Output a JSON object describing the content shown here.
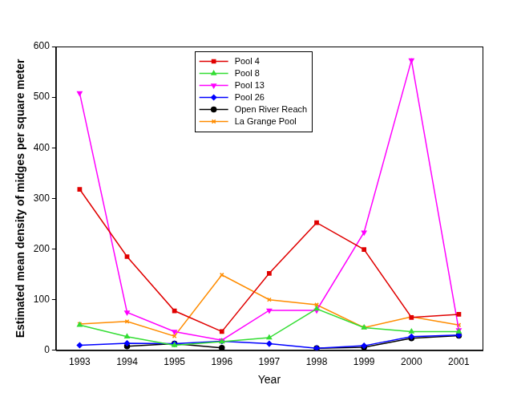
{
  "chart_data": {
    "type": "line",
    "x_label": "Year",
    "y_label": "Estimated mean density of midges per square meter",
    "categories": [
      "1993",
      "1994",
      "1995",
      "1996",
      "1997",
      "1998",
      "1999",
      "2000",
      "2001"
    ],
    "series": [
      {
        "name": "Pool 4",
        "color": "#e00000",
        "marker": "square",
        "values": [
          318,
          185,
          78,
          37,
          152,
          252,
          199,
          65,
          71
        ]
      },
      {
        "name": "Pool 8",
        "color": "#33dd33",
        "marker": "triangle",
        "values": [
          50,
          27,
          10,
          17,
          25,
          82,
          45,
          37,
          37
        ]
      },
      {
        "name": "Pool 13",
        "color": "#ff00ff",
        "marker": "triangle-down",
        "values": [
          508,
          75,
          37,
          20,
          79,
          79,
          233,
          573,
          40
        ]
      },
      {
        "name": "Pool 26",
        "color": "#0000ff",
        "marker": "diamond",
        "values": [
          10,
          14,
          13,
          18,
          13,
          4,
          9,
          27,
          30
        ]
      },
      {
        "name": "Open River Reach",
        "color": "#000000",
        "marker": "circle",
        "values": [
          null,
          8,
          13,
          5,
          null,
          4,
          6,
          24,
          29
        ]
      },
      {
        "name": "La Grange Pool",
        "color": "#ff8c00",
        "marker": "x",
        "values": [
          52,
          57,
          28,
          149,
          100,
          90,
          45,
          66,
          50
        ]
      }
    ],
    "ylim": [
      0,
      600
    ],
    "yticks": [
      0,
      100,
      200,
      300,
      400,
      500,
      600
    ],
    "grid": false,
    "legend": "top"
  }
}
